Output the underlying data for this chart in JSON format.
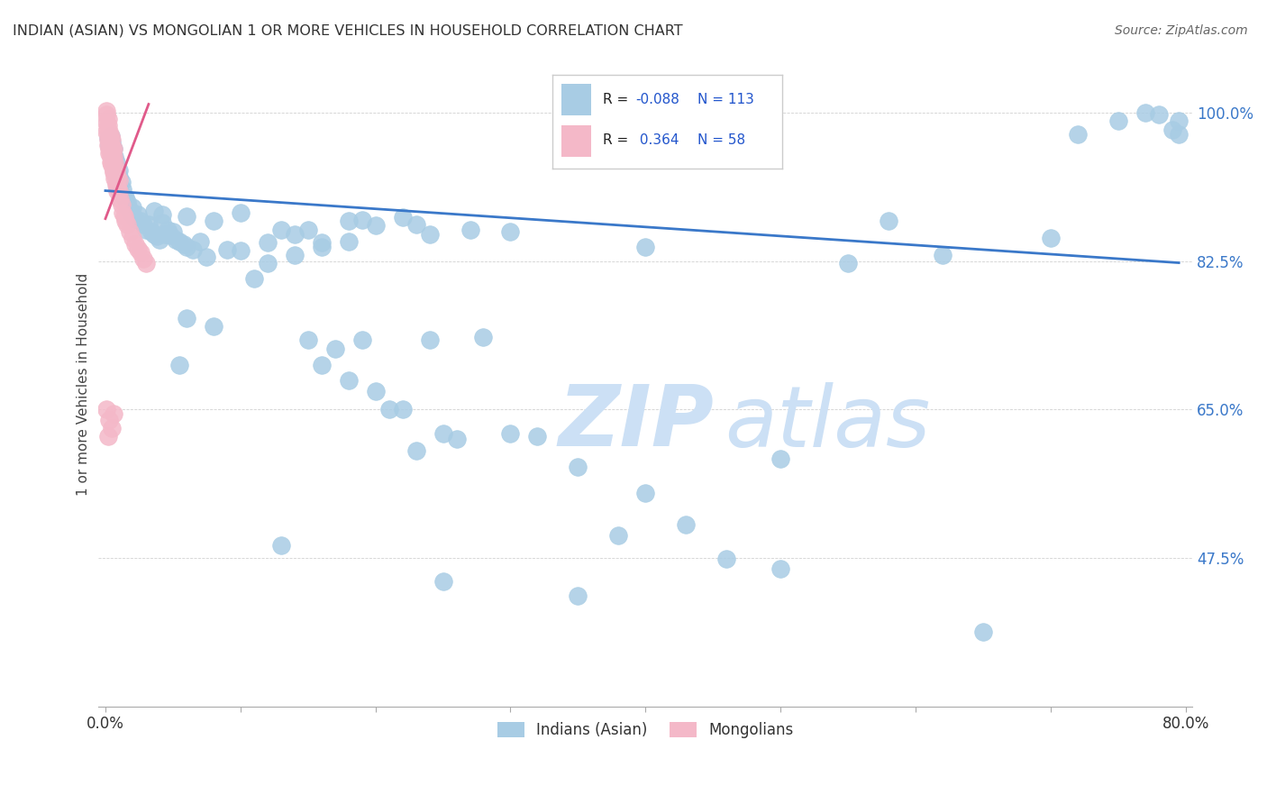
{
  "title": "INDIAN (ASIAN) VS MONGOLIAN 1 OR MORE VEHICLES IN HOUSEHOLD CORRELATION CHART",
  "source": "Source: ZipAtlas.com",
  "ylabel": "1 or more Vehicles in Household",
  "ytick_values": [
    1.0,
    0.825,
    0.65,
    0.475
  ],
  "ytick_labels": [
    "100.0%",
    "82.5%",
    "65.0%",
    "47.5%"
  ],
  "legend_label1": "Indians (Asian)",
  "legend_label2": "Mongolians",
  "blue_color": "#a8cce4",
  "pink_color": "#f4b8c8",
  "blue_line_color": "#3a78c9",
  "pink_line_color": "#e05a8a",
  "r_color": "#2255cc",
  "r_label_color": "#222222",
  "ytick_color": "#3a78c9",
  "blue_trend_x0": 0.0,
  "blue_trend_x1": 0.795,
  "blue_trend_y0": 0.908,
  "blue_trend_y1": 0.823,
  "pink_trend_x0": 0.0,
  "pink_trend_x1": 0.032,
  "pink_trend_y0": 0.875,
  "pink_trend_y1": 1.01,
  "xmin": -0.005,
  "xmax": 0.805,
  "ymin": 0.3,
  "ymax": 1.06,
  "blue_x": [
    0.002,
    0.003,
    0.004,
    0.004,
    0.005,
    0.005,
    0.006,
    0.006,
    0.007,
    0.007,
    0.008,
    0.008,
    0.009,
    0.01,
    0.01,
    0.011,
    0.012,
    0.013,
    0.014,
    0.015,
    0.016,
    0.017,
    0.018,
    0.019,
    0.02,
    0.022,
    0.024,
    0.026,
    0.028,
    0.03,
    0.032,
    0.034,
    0.036,
    0.038,
    0.04,
    0.042,
    0.044,
    0.046,
    0.05,
    0.055,
    0.06,
    0.065,
    0.07,
    0.075,
    0.08,
    0.09,
    0.1,
    0.11,
    0.12,
    0.13,
    0.14,
    0.15,
    0.16,
    0.17,
    0.18,
    0.19,
    0.2,
    0.21,
    0.22,
    0.23,
    0.24,
    0.25,
    0.26,
    0.28,
    0.3,
    0.32,
    0.35,
    0.38,
    0.4,
    0.43,
    0.46,
    0.5,
    0.55,
    0.58,
    0.62,
    0.65,
    0.7,
    0.72,
    0.75,
    0.77,
    0.78,
    0.79,
    0.795,
    0.795,
    0.13,
    0.25,
    0.35,
    0.5,
    0.055,
    0.18,
    0.22,
    0.3,
    0.4,
    0.2,
    0.24,
    0.1,
    0.15,
    0.06,
    0.08,
    0.12,
    0.16,
    0.19,
    0.23,
    0.27,
    0.14,
    0.16,
    0.18,
    0.036,
    0.042,
    0.06,
    0.048,
    0.052,
    0.058
  ],
  "blue_y": [
    0.97,
    0.962,
    0.955,
    0.972,
    0.948,
    0.965,
    0.94,
    0.957,
    0.933,
    0.948,
    0.928,
    0.942,
    0.92,
    0.925,
    0.932,
    0.915,
    0.918,
    0.91,
    0.9,
    0.9,
    0.895,
    0.888,
    0.885,
    0.882,
    0.888,
    0.875,
    0.88,
    0.872,
    0.868,
    0.862,
    0.868,
    0.86,
    0.856,
    0.854,
    0.85,
    0.87,
    0.856,
    0.862,
    0.86,
    0.848,
    0.842,
    0.838,
    0.848,
    0.83,
    0.872,
    0.838,
    0.882,
    0.804,
    0.822,
    0.862,
    0.832,
    0.732,
    0.702,
    0.722,
    0.684,
    0.732,
    0.672,
    0.65,
    0.65,
    0.602,
    0.732,
    0.622,
    0.615,
    0.735,
    0.622,
    0.618,
    0.582,
    0.502,
    0.552,
    0.514,
    0.474,
    0.462,
    0.822,
    0.872,
    0.832,
    0.388,
    0.852,
    0.974,
    0.99,
    1.0,
    0.998,
    0.98,
    0.975,
    0.99,
    0.49,
    0.447,
    0.43,
    0.592,
    0.702,
    0.848,
    0.877,
    0.86,
    0.842,
    0.867,
    0.857,
    0.837,
    0.862,
    0.758,
    0.748,
    0.847,
    0.842,
    0.874,
    0.868,
    0.862,
    0.857,
    0.847,
    0.872,
    0.884,
    0.88,
    0.878,
    0.855,
    0.85,
    0.845
  ],
  "pink_x": [
    0.001,
    0.001,
    0.001,
    0.002,
    0.002,
    0.002,
    0.003,
    0.003,
    0.003,
    0.004,
    0.004,
    0.004,
    0.005,
    0.005,
    0.005,
    0.006,
    0.006,
    0.006,
    0.007,
    0.007,
    0.008,
    0.008,
    0.009,
    0.009,
    0.01,
    0.01,
    0.011,
    0.012,
    0.013,
    0.014,
    0.015,
    0.016,
    0.018,
    0.02,
    0.022,
    0.024,
    0.026,
    0.028,
    0.03,
    0.001,
    0.002,
    0.003,
    0.004,
    0.005,
    0.006,
    0.007,
    0.008,
    0.009,
    0.002,
    0.004,
    0.006,
    0.003,
    0.005,
    0.007,
    0.001,
    0.003,
    0.005,
    0.002
  ],
  "pink_y": [
    0.978,
    0.988,
    0.998,
    0.968,
    0.978,
    0.993,
    0.958,
    0.968,
    0.978,
    0.948,
    0.96,
    0.972,
    0.942,
    0.958,
    0.968,
    0.932,
    0.948,
    0.958,
    0.928,
    0.94,
    0.918,
    0.932,
    0.912,
    0.925,
    0.908,
    0.92,
    0.898,
    0.892,
    0.882,
    0.878,
    0.872,
    0.868,
    0.86,
    0.852,
    0.845,
    0.84,
    0.835,
    0.828,
    0.822,
    1.002,
    0.962,
    0.952,
    0.942,
    0.938,
    0.93,
    0.922,
    0.915,
    0.908,
    0.985,
    0.952,
    0.645,
    0.972,
    0.948,
    0.935,
    0.65,
    0.638,
    0.628,
    0.618
  ]
}
